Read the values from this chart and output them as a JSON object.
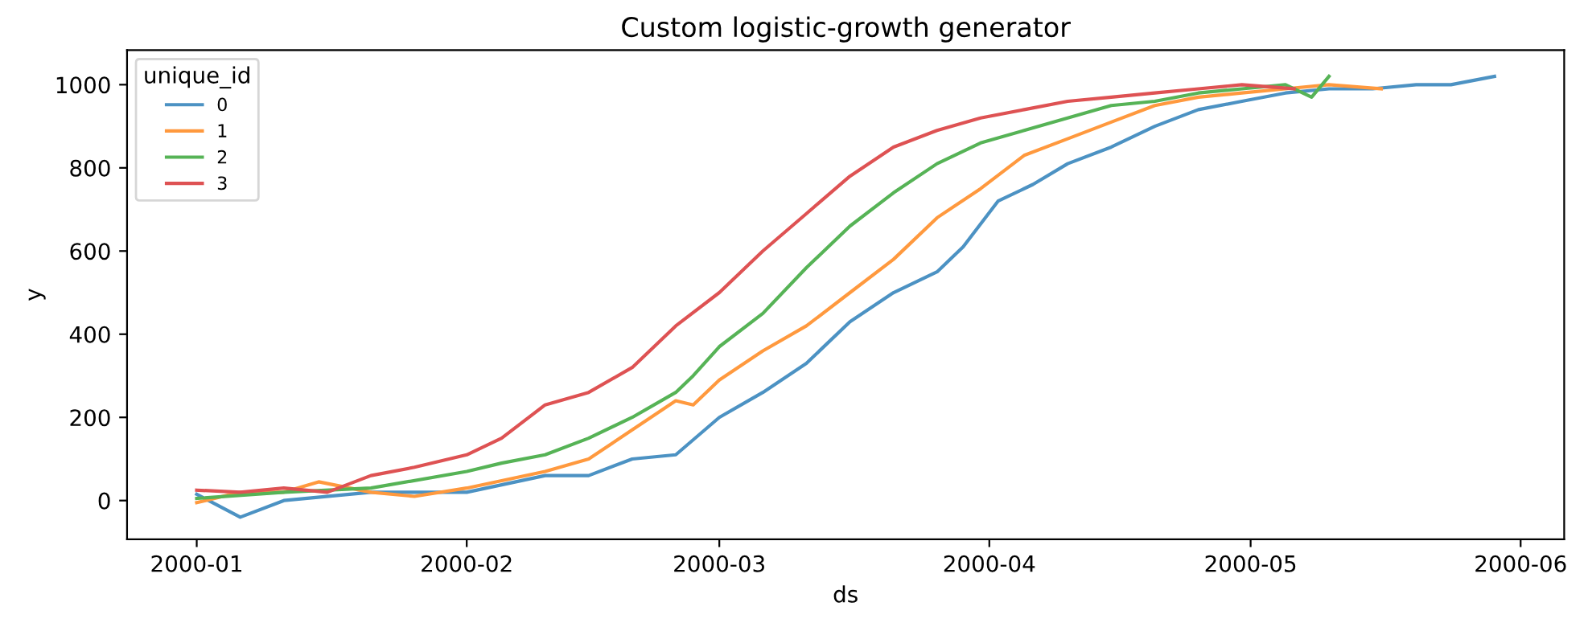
{
  "chart_data": {
    "type": "line",
    "title": "Custom logistic-growth generator",
    "xlabel": "ds",
    "ylabel": "y",
    "legend_title": "unique_id",
    "legend": "top left",
    "grid": false,
    "marker": "none",
    "line_style": "solid",
    "xlim": [
      "1999-12-24",
      "2000-06-06"
    ],
    "ylim": [
      -93,
      1083
    ],
    "xticks": [
      {
        "value": "2000-01-01",
        "label": "2000-01"
      },
      {
        "value": "2000-02-01",
        "label": "2000-02"
      },
      {
        "value": "2000-03-01",
        "label": "2000-03"
      },
      {
        "value": "2000-04-01",
        "label": "2000-04"
      },
      {
        "value": "2000-05-01",
        "label": "2000-05"
      },
      {
        "value": "2000-06-01",
        "label": "2000-06"
      }
    ],
    "yticks": [
      0,
      200,
      400,
      600,
      800,
      1000
    ],
    "series": [
      {
        "name": "0",
        "color": "#4c92c3",
        "x": [
          "2000-01-01",
          "2000-01-06",
          "2000-01-11",
          "2000-01-21",
          "2000-02-01",
          "2000-02-10",
          "2000-02-15",
          "2000-02-20",
          "2000-02-25",
          "2000-03-01",
          "2000-03-06",
          "2000-03-11",
          "2000-03-16",
          "2000-03-21",
          "2000-03-26",
          "2000-03-29",
          "2000-04-02",
          "2000-04-06",
          "2000-04-10",
          "2000-04-15",
          "2000-04-20",
          "2000-04-25",
          "2000-04-30",
          "2000-05-05",
          "2000-05-10",
          "2000-05-15",
          "2000-05-20",
          "2000-05-24",
          "2000-05-29"
        ],
        "values": [
          15,
          -40,
          0,
          20,
          20,
          60,
          60,
          100,
          110,
          200,
          260,
          330,
          430,
          500,
          550,
          610,
          720,
          760,
          810,
          850,
          900,
          940,
          960,
          980,
          990,
          990,
          1000,
          1000,
          1020
        ]
      },
      {
        "name": "1",
        "color": "#ff993e",
        "x": [
          "2000-01-01",
          "2000-01-06",
          "2000-01-11",
          "2000-01-15",
          "2000-01-21",
          "2000-01-26",
          "2000-02-01",
          "2000-02-10",
          "2000-02-15",
          "2000-02-20",
          "2000-02-25",
          "2000-02-27",
          "2000-03-01",
          "2000-03-06",
          "2000-03-11",
          "2000-03-16",
          "2000-03-21",
          "2000-03-26",
          "2000-03-31",
          "2000-04-05",
          "2000-04-10",
          "2000-04-15",
          "2000-04-20",
          "2000-04-25",
          "2000-04-30",
          "2000-05-05",
          "2000-05-10",
          "2000-05-16"
        ],
        "values": [
          -5,
          20,
          20,
          45,
          20,
          10,
          30,
          70,
          100,
          170,
          240,
          230,
          290,
          360,
          420,
          500,
          580,
          680,
          750,
          830,
          870,
          910,
          950,
          970,
          980,
          990,
          1000,
          990
        ]
      },
      {
        "name": "2",
        "color": "#56b356",
        "x": [
          "2000-01-01",
          "2000-01-11",
          "2000-01-21",
          "2000-02-01",
          "2000-02-05",
          "2000-02-10",
          "2000-02-15",
          "2000-02-20",
          "2000-02-25",
          "2000-02-27",
          "2000-03-01",
          "2000-03-06",
          "2000-03-11",
          "2000-03-16",
          "2000-03-21",
          "2000-03-26",
          "2000-03-31",
          "2000-04-05",
          "2000-04-10",
          "2000-04-15",
          "2000-04-20",
          "2000-04-25",
          "2000-04-30",
          "2000-05-05",
          "2000-05-08",
          "2000-05-10"
        ],
        "values": [
          5,
          20,
          30,
          70,
          90,
          110,
          150,
          200,
          260,
          300,
          370,
          450,
          560,
          660,
          740,
          810,
          860,
          890,
          920,
          950,
          960,
          980,
          990,
          1000,
          970,
          1020
        ]
      },
      {
        "name": "3",
        "color": "#de5253",
        "x": [
          "2000-01-01",
          "2000-01-06",
          "2000-01-11",
          "2000-01-16",
          "2000-01-21",
          "2000-01-26",
          "2000-02-01",
          "2000-02-05",
          "2000-02-10",
          "2000-02-15",
          "2000-02-20",
          "2000-02-25",
          "2000-03-01",
          "2000-03-06",
          "2000-03-11",
          "2000-03-16",
          "2000-03-21",
          "2000-03-26",
          "2000-03-31",
          "2000-04-05",
          "2000-04-10",
          "2000-04-15",
          "2000-04-20",
          "2000-04-25",
          "2000-04-30",
          "2000-05-06"
        ],
        "values": [
          25,
          20,
          30,
          20,
          60,
          80,
          110,
          150,
          230,
          260,
          320,
          420,
          500,
          600,
          690,
          780,
          850,
          890,
          920,
          940,
          960,
          970,
          980,
          990,
          1000,
          990
        ]
      }
    ]
  }
}
